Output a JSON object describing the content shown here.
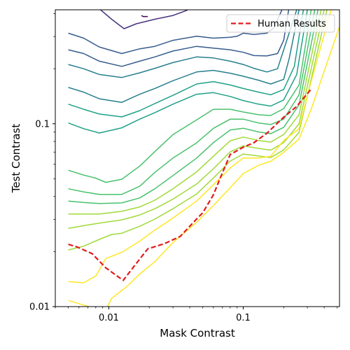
{
  "chart_data": {
    "type": "line",
    "title": "",
    "xlabel": "Mask Contrast",
    "ylabel": "Test Contrast",
    "xscale": "log",
    "yscale": "log",
    "xlim": [
      0.004,
      0.52
    ],
    "ylim": [
      0.01,
      0.42
    ],
    "x_ticks": [
      {
        "value": 0.01,
        "label": "0.01"
      },
      {
        "value": 0.1,
        "label": "0.1"
      }
    ],
    "y_ticks": [
      {
        "value": 0.01,
        "label": "0.01"
      },
      {
        "value": 0.1,
        "label": "0.1"
      }
    ],
    "grid": false,
    "legend": {
      "position": "top-right",
      "entries": [
        "Human Results"
      ]
    },
    "series": [
      {
        "name": "Human Results",
        "color": "#e41a1c",
        "style": "dashed",
        "x": [
          0.005,
          0.0058,
          0.0075,
          0.0095,
          0.0128,
          0.0153,
          0.0195,
          0.026,
          0.034,
          0.043,
          0.05,
          0.06,
          0.068,
          0.08,
          0.1,
          0.12,
          0.15,
          0.2,
          0.25,
          0.32
        ],
        "y": [
          0.0219,
          0.0212,
          0.0195,
          0.0163,
          0.0139,
          0.0165,
          0.0207,
          0.0221,
          0.0242,
          0.0291,
          0.0326,
          0.0409,
          0.0512,
          0.0679,
          0.0744,
          0.0788,
          0.0888,
          0.1086,
          0.1244,
          0.155
        ]
      }
    ],
    "contours": {
      "colormap": "viridis",
      "line_colors": [
        "#440154",
        "#46327e",
        "#365c8d",
        "#277f8e",
        "#1fa187",
        "#4ac16d",
        "#a0da39",
        "#fde725"
      ],
      "lines": [
        {
          "level": 1,
          "color": "#440154",
          "x": [
            0.0175,
            0.018,
            0.0195
          ],
          "y": [
            0.391,
            0.386,
            0.386
          ]
        },
        {
          "level": 2,
          "color": "#46327e",
          "x": [
            0.008,
            0.0105,
            0.013,
            0.016,
            0.022,
            0.03,
            0.038,
            0.042
          ],
          "y": [
            0.442,
            0.373,
            0.331,
            0.352,
            0.373,
            0.391,
            0.417,
            0.442
          ]
        },
        {
          "level": 3,
          "color": "#365c8d",
          "x": [
            0.005,
            0.0065,
            0.0085,
            0.0125,
            0.017,
            0.022,
            0.03,
            0.045,
            0.06,
            0.08,
            0.09,
            0.1,
            0.12,
            0.15,
            0.17,
            0.2
          ],
          "y": [
            0.313,
            0.294,
            0.263,
            0.242,
            0.257,
            0.265,
            0.286,
            0.301,
            0.294,
            0.297,
            0.301,
            0.313,
            0.308,
            0.313,
            0.336,
            0.442
          ]
        },
        {
          "level": 4,
          "color": "#365c8d",
          "x": [
            0.005,
            0.0065,
            0.0085,
            0.0125,
            0.017,
            0.022,
            0.03,
            0.045,
            0.06,
            0.08,
            0.1,
            0.12,
            0.15,
            0.18,
            0.2,
            0.22
          ],
          "y": [
            0.254,
            0.242,
            0.22,
            0.206,
            0.22,
            0.232,
            0.25,
            0.265,
            0.259,
            0.254,
            0.246,
            0.236,
            0.235,
            0.242,
            0.286,
            0.442
          ]
        },
        {
          "level": 5,
          "color": "#277f8e",
          "x": [
            0.005,
            0.0065,
            0.0085,
            0.0125,
            0.017,
            0.022,
            0.03,
            0.045,
            0.06,
            0.08,
            0.1,
            0.12,
            0.15,
            0.18,
            0.2,
            0.25
          ],
          "y": [
            0.211,
            0.2,
            0.186,
            0.179,
            0.19,
            0.201,
            0.216,
            0.232,
            0.229,
            0.22,
            0.211,
            0.201,
            0.192,
            0.2,
            0.254,
            0.42
          ]
        },
        {
          "level": 6,
          "color": "#277f8e",
          "x": [
            0.005,
            0.0065,
            0.0085,
            0.0125,
            0.017,
            0.022,
            0.03,
            0.045,
            0.06,
            0.08,
            0.1,
            0.13,
            0.16,
            0.2,
            0.22,
            0.26
          ],
          "y": [
            0.158,
            0.149,
            0.137,
            0.131,
            0.145,
            0.156,
            0.172,
            0.192,
            0.196,
            0.189,
            0.182,
            0.173,
            0.165,
            0.175,
            0.229,
            0.42
          ]
        },
        {
          "level": 7,
          "color": "#1fa187",
          "x": [
            0.005,
            0.0065,
            0.0085,
            0.0125,
            0.017,
            0.022,
            0.03,
            0.045,
            0.06,
            0.08,
            0.1,
            0.13,
            0.16,
            0.2,
            0.24,
            0.28
          ],
          "y": [
            0.128,
            0.12,
            0.113,
            0.109,
            0.118,
            0.129,
            0.143,
            0.165,
            0.17,
            0.163,
            0.156,
            0.149,
            0.144,
            0.154,
            0.206,
            0.42
          ]
        },
        {
          "level": 8,
          "color": "#1fa187",
          "x": [
            0.005,
            0.0065,
            0.0085,
            0.0125,
            0.017,
            0.022,
            0.03,
            0.045,
            0.06,
            0.08,
            0.1,
            0.13,
            0.16,
            0.2,
            0.25,
            0.3
          ],
          "y": [
            0.101,
            0.094,
            0.089,
            0.095,
            0.106,
            0.115,
            0.128,
            0.145,
            0.148,
            0.141,
            0.134,
            0.128,
            0.125,
            0.135,
            0.186,
            0.42
          ]
        },
        {
          "level": 9,
          "color": "#4ac16d",
          "x": [
            0.005,
            0.0065,
            0.008,
            0.0095,
            0.0125,
            0.017,
            0.022,
            0.03,
            0.045,
            0.06,
            0.08,
            0.1,
            0.13,
            0.16,
            0.2,
            0.26,
            0.32
          ],
          "y": [
            0.0557,
            0.0524,
            0.0504,
            0.0478,
            0.0497,
            0.0587,
            0.0704,
            0.0872,
            0.105,
            0.12,
            0.12,
            0.116,
            0.112,
            0.111,
            0.121,
            0.163,
            0.42
          ]
        },
        {
          "level": 10,
          "color": "#4ac16d",
          "x": [
            0.005,
            0.0065,
            0.0085,
            0.0125,
            0.017,
            0.022,
            0.03,
            0.045,
            0.06,
            0.08,
            0.1,
            0.13,
            0.16,
            0.2,
            0.26,
            0.34
          ],
          "y": [
            0.0441,
            0.0424,
            0.0411,
            0.0411,
            0.0455,
            0.0542,
            0.0649,
            0.0786,
            0.0944,
            0.106,
            0.106,
            0.101,
            0.099,
            0.106,
            0.144,
            0.42
          ]
        },
        {
          "level": 11,
          "color": "#4ac16d",
          "x": [
            0.005,
            0.0065,
            0.0085,
            0.0125,
            0.017,
            0.022,
            0.03,
            0.045,
            0.06,
            0.08,
            0.1,
            0.13,
            0.16,
            0.2,
            0.26,
            0.36
          ],
          "y": [
            0.0378,
            0.0371,
            0.0366,
            0.0369,
            0.0393,
            0.0441,
            0.0521,
            0.0649,
            0.0789,
            0.0925,
            0.0945,
            0.0902,
            0.0883,
            0.0956,
            0.127,
            0.42
          ]
        },
        {
          "level": 12,
          "color": "#a0da39",
          "x": [
            0.005,
            0.0065,
            0.0085,
            0.0125,
            0.017,
            0.022,
            0.03,
            0.045,
            0.06,
            0.08,
            0.1,
            0.13,
            0.16,
            0.2,
            0.26,
            0.38
          ],
          "y": [
            0.0321,
            0.0321,
            0.0321,
            0.0332,
            0.0351,
            0.0382,
            0.0441,
            0.0545,
            0.0664,
            0.0807,
            0.0846,
            0.081,
            0.0794,
            0.0873,
            0.112,
            0.42
          ]
        },
        {
          "level": 13,
          "color": "#a0da39",
          "x": [
            0.005,
            0.0065,
            0.0085,
            0.0125,
            0.017,
            0.022,
            0.03,
            0.045,
            0.06,
            0.08,
            0.1,
            0.13,
            0.16,
            0.2,
            0.26,
            0.4
          ],
          "y": [
            0.0268,
            0.0277,
            0.0286,
            0.0298,
            0.0317,
            0.0343,
            0.0387,
            0.0468,
            0.0568,
            0.0702,
            0.0757,
            0.0733,
            0.0717,
            0.0788,
            0.0999,
            0.42
          ]
        },
        {
          "level": 14,
          "color": "#a0da39",
          "x": [
            0.005,
            0.0065,
            0.0085,
            0.0105,
            0.0125,
            0.017,
            0.022,
            0.03,
            0.045,
            0.06,
            0.08,
            0.1,
            0.13,
            0.16,
            0.2,
            0.26,
            0.42
          ],
          "y": [
            0.0204,
            0.0214,
            0.0233,
            0.0248,
            0.0252,
            0.0275,
            0.0301,
            0.0343,
            0.0413,
            0.0505,
            0.0625,
            0.0683,
            0.0666,
            0.0653,
            0.0719,
            0.0897,
            0.42
          ]
        },
        {
          "level": 15,
          "color": "#fde725",
          "x": [
            0.005,
            0.0065,
            0.008,
            0.0095,
            0.0125,
            0.017,
            0.022,
            0.03,
            0.045,
            0.06,
            0.08,
            0.1,
            0.13,
            0.16,
            0.2,
            0.26,
            0.3,
            0.45
          ],
          "y": [
            0.0137,
            0.0135,
            0.0147,
            0.0183,
            0.0198,
            0.0228,
            0.0262,
            0.0305,
            0.0378,
            0.0464,
            0.0573,
            0.0649,
            0.0649,
            0.0663,
            0.0811,
            0.0939,
            0.143,
            0.42
          ]
        },
        {
          "level": 16,
          "color": "#fde725",
          "x": [
            0.005,
            0.0065,
            0.0085,
            0.0095,
            0.0105,
            0.0135,
            0.017,
            0.022,
            0.03,
            0.045,
            0.06,
            0.08,
            0.1,
            0.13,
            0.16,
            0.2,
            0.26,
            0.32,
            0.52
          ],
          "y": [
            0.0108,
            0.0102,
            0.0096,
            0.0096,
            0.0111,
            0.0128,
            0.0151,
            0.0176,
            0.0224,
            0.0289,
            0.0357,
            0.0447,
            0.0534,
            0.0593,
            0.0623,
            0.0697,
            0.0826,
            0.12,
            0.34
          ]
        }
      ]
    }
  }
}
